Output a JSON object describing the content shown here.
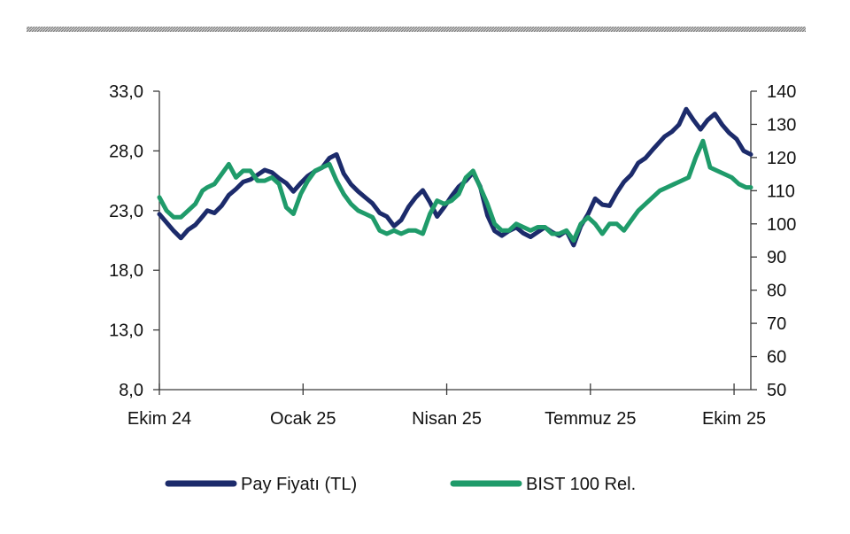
{
  "chart_data": {
    "type": "line",
    "title": "",
    "xlabel": "",
    "ylabel": "",
    "x_tick_labels": [
      "Ekim 24",
      "Ocak 25",
      "Nisan 25",
      "Temmuz 25",
      "Ekim 25"
    ],
    "y_left": {
      "ylim": [
        8,
        33
      ],
      "ticks": [
        "8,0",
        "13,0",
        "18,0",
        "23,0",
        "28,0",
        "33,0"
      ]
    },
    "y_right": {
      "ylim": [
        50,
        140
      ],
      "ticks": [
        "50",
        "60",
        "70",
        "80",
        "90",
        "100",
        "110",
        "120",
        "130",
        "140"
      ]
    },
    "legend_position": "bottom",
    "grid": false,
    "x_positions_note": "x values are months since start of Oct 2024",
    "series": [
      {
        "name": "Pay Fiyatı (TL)",
        "axis": "left",
        "color": "#1c2b6b",
        "x": [
          0,
          0.15,
          0.3,
          0.45,
          0.6,
          0.75,
          0.9,
          1.0,
          1.15,
          1.3,
          1.45,
          1.6,
          1.75,
          1.9,
          2.05,
          2.2,
          2.35,
          2.5,
          2.65,
          2.8,
          2.95,
          3.1,
          3.25,
          3.4,
          3.55,
          3.7,
          3.85,
          4.0,
          4.15,
          4.3,
          4.45,
          4.6,
          4.75,
          4.9,
          5.05,
          5.2,
          5.35,
          5.5,
          5.65,
          5.8,
          5.95,
          6.1,
          6.25,
          6.4,
          6.55,
          6.7,
          6.85,
          7.0,
          7.15,
          7.3,
          7.45,
          7.6,
          7.75,
          7.9,
          8.05,
          8.2,
          8.35,
          8.5,
          8.65,
          8.8,
          8.95,
          9.1,
          9.25,
          9.4,
          9.55,
          9.7,
          9.85,
          10.0,
          10.15,
          10.3,
          10.55,
          10.7,
          10.85,
          11.0,
          11.15,
          11.3,
          11.45,
          11.6,
          11.75,
          11.9,
          12.05,
          12.2,
          12.35
        ],
        "values": [
          22.7,
          22.0,
          21.3,
          20.7,
          21.4,
          21.8,
          22.5,
          23.0,
          22.8,
          23.4,
          24.3,
          24.8,
          25.4,
          25.6,
          26.0,
          26.4,
          26.2,
          25.7,
          25.3,
          24.6,
          25.3,
          25.9,
          26.3,
          26.6,
          27.4,
          27.7,
          26.1,
          25.2,
          24.6,
          24.1,
          23.6,
          22.8,
          22.5,
          21.7,
          22.2,
          23.3,
          24.1,
          24.7,
          23.7,
          22.5,
          23.3,
          24.2,
          25.0,
          25.5,
          26.2,
          25.0,
          22.6,
          21.3,
          20.9,
          21.3,
          21.6,
          21.1,
          20.8,
          21.2,
          21.6,
          21.2,
          20.9,
          21.3,
          20.1,
          21.7,
          22.7,
          24.0,
          23.5,
          23.4,
          24.5,
          25.4,
          26.0,
          27.0,
          27.4,
          28.1,
          29.2,
          29.6,
          30.2,
          31.5,
          30.6,
          29.8,
          30.6,
          31.1,
          30.2,
          29.5,
          29.0,
          28.0,
          27.7
        ]
      },
      {
        "name": "BIST 100 Rel.",
        "axis": "right",
        "color": "#1f9b6a",
        "x": [
          0,
          0.15,
          0.3,
          0.45,
          0.6,
          0.75,
          0.9,
          1.0,
          1.15,
          1.3,
          1.45,
          1.6,
          1.75,
          1.9,
          2.05,
          2.2,
          2.35,
          2.5,
          2.65,
          2.8,
          2.95,
          3.1,
          3.25,
          3.4,
          3.55,
          3.7,
          3.85,
          4.0,
          4.15,
          4.3,
          4.45,
          4.6,
          4.75,
          4.9,
          5.05,
          5.2,
          5.35,
          5.5,
          5.65,
          5.8,
          5.95,
          6.1,
          6.25,
          6.4,
          6.55,
          6.7,
          6.85,
          7.0,
          7.15,
          7.3,
          7.45,
          7.6,
          7.75,
          7.9,
          8.05,
          8.2,
          8.35,
          8.5,
          8.65,
          8.8,
          8.95,
          9.1,
          9.25,
          9.4,
          9.55,
          9.7,
          9.85,
          10.0,
          10.15,
          10.3,
          10.45,
          10.6,
          10.75,
          10.9,
          11.05,
          11.2,
          11.35,
          11.5,
          11.65,
          11.8,
          11.95,
          12.1,
          12.25,
          12.35
        ],
        "values": [
          108,
          104,
          102,
          102,
          104,
          106,
          110,
          111,
          112,
          115,
          118,
          114,
          116,
          116,
          113,
          113,
          114,
          112,
          105,
          103,
          109,
          113,
          116,
          117,
          118,
          113,
          109,
          106,
          104,
          103,
          102,
          98,
          97,
          98,
          97,
          98,
          98,
          97,
          103,
          107,
          106,
          107,
          109,
          114,
          116,
          111,
          106,
          100,
          98,
          98,
          100,
          99,
          98,
          99,
          99,
          97,
          97,
          98,
          95,
          100,
          102,
          100,
          97,
          100,
          100,
          98,
          101,
          104,
          106,
          108,
          110,
          111,
          112,
          113,
          114,
          120,
          125,
          117,
          116,
          115,
          114,
          112,
          111,
          111
        ]
      }
    ]
  }
}
